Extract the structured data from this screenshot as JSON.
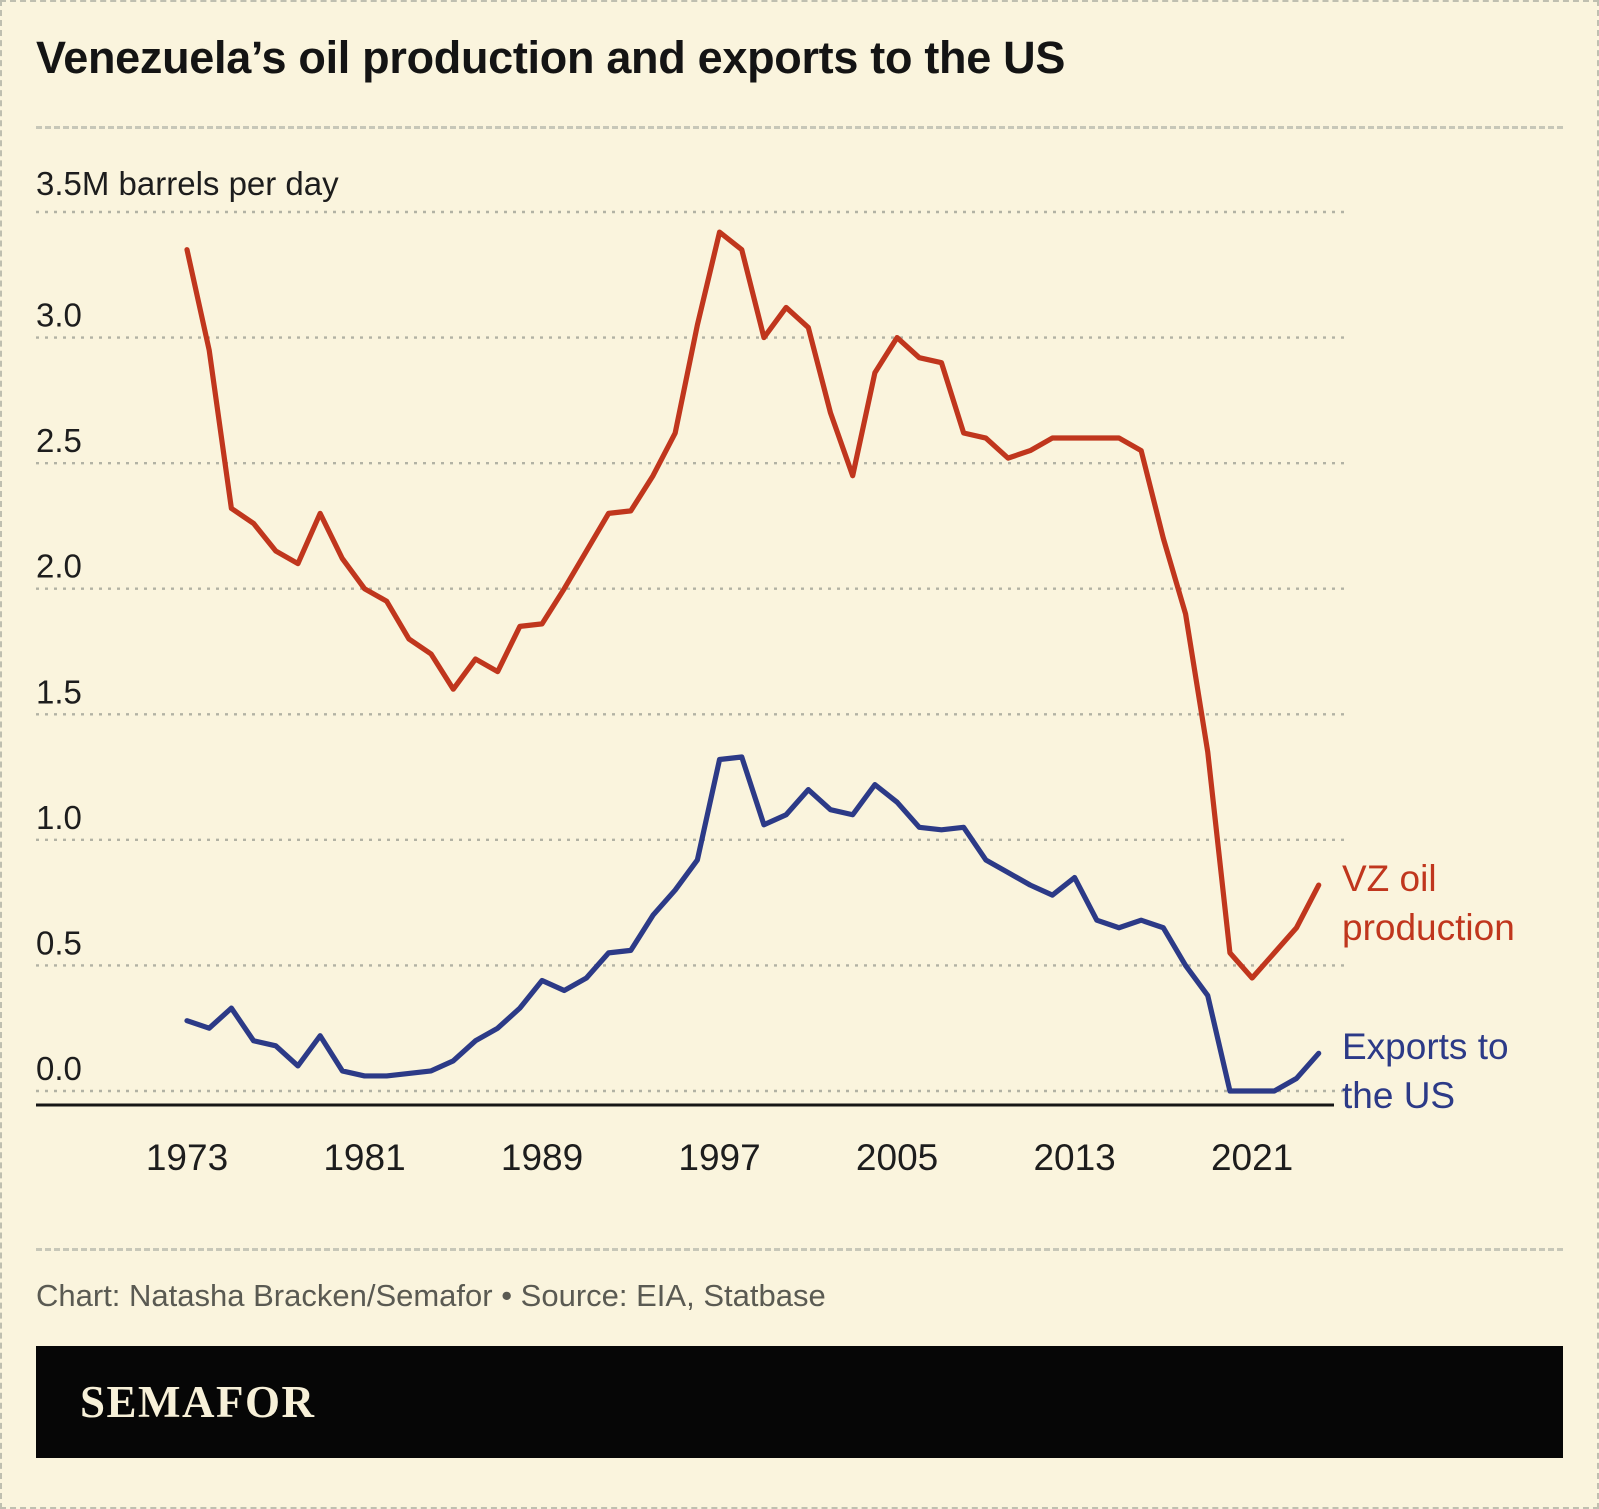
{
  "page": {
    "title": "Venezuela’s oil production and exports to the US",
    "caption": "Chart: Natasha Bracken/Semafor • Source: EIA, Statbase",
    "logo_text": "SEMAFOR"
  },
  "colors": {
    "background": "#faf4dd",
    "production_red": "#c0361d",
    "exports_blue": "#2c3a87",
    "gridline": "#b2b2a4",
    "axis": "#161616",
    "caption_gray": "#5a5a52"
  },
  "chart_data": {
    "type": "line",
    "title": "Venezuela’s oil production and exports to the US",
    "unit": "million barrels per day",
    "y_axis_top_label": "3.5M barrels per day",
    "xlabel": "",
    "ylabel": "barrels per day (millions)",
    "ylim": [
      0,
      3.5
    ],
    "y_ticks": [
      0.0,
      0.5,
      1.0,
      1.5,
      2.0,
      2.5,
      3.0
    ],
    "x_ticks": [
      1973,
      1981,
      1989,
      1997,
      2005,
      2013,
      2021
    ],
    "grid": "dashed horizontal",
    "legend_position": "right-of-line-end",
    "x": [
      1973,
      1974,
      1975,
      1976,
      1977,
      1978,
      1979,
      1980,
      1981,
      1982,
      1983,
      1984,
      1985,
      1986,
      1987,
      1988,
      1989,
      1990,
      1991,
      1992,
      1993,
      1994,
      1995,
      1996,
      1997,
      1998,
      1999,
      2000,
      2001,
      2002,
      2003,
      2004,
      2005,
      2006,
      2007,
      2008,
      2009,
      2010,
      2011,
      2012,
      2013,
      2014,
      2015,
      2016,
      2017,
      2018,
      2019,
      2020,
      2021,
      2022,
      2023,
      2024
    ],
    "series": [
      {
        "name": "VZ oil production",
        "data_name": "production-line",
        "color_key": "production_red",
        "label_lines": [
          "VZ oil",
          "production"
        ],
        "values": [
          3.35,
          2.95,
          2.32,
          2.26,
          2.15,
          2.1,
          2.3,
          2.12,
          2.0,
          1.95,
          1.8,
          1.74,
          1.6,
          1.72,
          1.67,
          1.85,
          1.86,
          2.0,
          2.15,
          2.3,
          2.31,
          2.45,
          2.62,
          3.05,
          3.42,
          3.35,
          3.0,
          3.12,
          3.04,
          2.7,
          2.45,
          2.86,
          3.0,
          2.92,
          2.9,
          2.62,
          2.6,
          2.52,
          2.55,
          2.6,
          2.6,
          2.6,
          2.6,
          2.55,
          2.2,
          1.9,
          1.35,
          0.55,
          0.45,
          0.55,
          0.65,
          0.82
        ]
      },
      {
        "name": "Exports to the US",
        "data_name": "exports-line",
        "color_key": "exports_blue",
        "label_lines": [
          "Exports to",
          "the US"
        ],
        "values": [
          0.28,
          0.25,
          0.33,
          0.2,
          0.18,
          0.1,
          0.22,
          0.08,
          0.06,
          0.06,
          0.07,
          0.08,
          0.12,
          0.2,
          0.25,
          0.33,
          0.44,
          0.4,
          0.45,
          0.55,
          0.56,
          0.7,
          0.8,
          0.92,
          1.32,
          1.33,
          1.06,
          1.1,
          1.2,
          1.12,
          1.1,
          1.22,
          1.15,
          1.05,
          1.04,
          1.05,
          0.92,
          0.87,
          0.82,
          0.78,
          0.85,
          0.68,
          0.65,
          0.68,
          0.65,
          0.5,
          0.38,
          0.0,
          0.0,
          0.0,
          0.05,
          0.15
        ]
      }
    ]
  }
}
